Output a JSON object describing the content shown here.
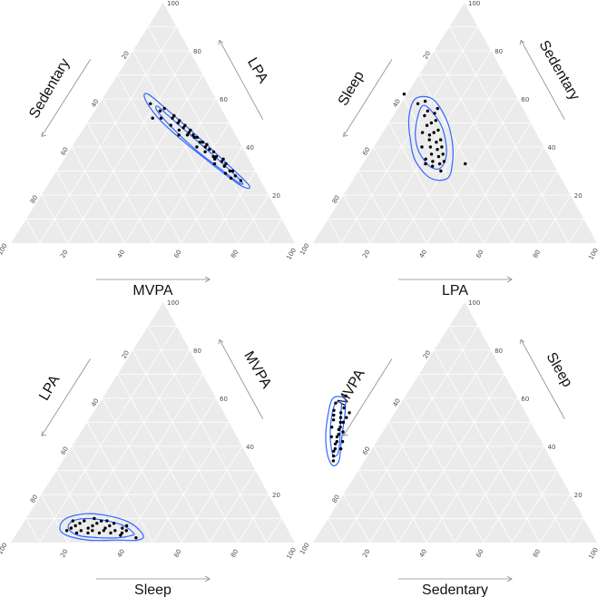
{
  "chart_data": [
    {
      "type": "scatter",
      "subtype": "ternary",
      "axes": {
        "left": "Sedentary",
        "right": "LPA",
        "bottom": "MVPA"
      },
      "ticks": [
        "20",
        "40",
        "60",
        "80",
        "100"
      ],
      "points": [
        [
          7,
          26,
          67
        ],
        [
          8,
          28,
          64
        ],
        [
          9,
          30,
          61
        ],
        [
          8,
          30,
          62
        ],
        [
          10,
          32,
          58
        ],
        [
          10,
          34,
          56
        ],
        [
          9,
          35,
          56
        ],
        [
          11,
          36,
          53
        ],
        [
          12,
          36,
          52
        ],
        [
          11,
          38,
          51
        ],
        [
          12,
          39,
          49
        ],
        [
          13,
          40,
          47
        ],
        [
          12,
          41,
          47
        ],
        [
          14,
          42,
          44
        ],
        [
          13,
          42,
          45
        ],
        [
          15,
          44,
          41
        ],
        [
          14,
          44,
          42
        ],
        [
          15,
          45,
          40
        ],
        [
          16,
          46,
          38
        ],
        [
          15,
          47,
          38
        ],
        [
          17,
          48,
          35
        ],
        [
          16,
          49,
          35
        ],
        [
          18,
          50,
          32
        ],
        [
          17,
          51,
          32
        ],
        [
          19,
          52,
          29
        ],
        [
          18,
          53,
          29
        ],
        [
          20,
          56,
          24
        ],
        [
          22,
          55,
          23
        ],
        [
          23,
          52,
          25
        ],
        [
          10,
          27,
          63
        ],
        [
          11,
          29,
          60
        ],
        [
          13,
          33,
          54
        ],
        [
          16,
          40,
          44
        ],
        [
          14,
          38,
          48
        ],
        [
          17,
          45,
          38
        ],
        [
          19,
          47,
          34
        ],
        [
          21,
          49,
          30
        ],
        [
          20,
          45,
          35
        ],
        [
          12,
          35,
          53
        ],
        [
          9,
          33,
          58
        ],
        [
          24,
          58,
          18
        ],
        [
          26,
          52,
          22
        ]
      ],
      "contours": [
        [
          [
            5,
            24,
            71
          ],
          [
            9,
            34,
            57
          ],
          [
            14,
            45,
            41
          ],
          [
            19,
            55,
            26
          ],
          [
            23,
            62,
            15
          ],
          [
            25,
            60,
            15
          ],
          [
            24,
            52,
            24
          ],
          [
            20,
            43,
            37
          ],
          [
            14,
            33,
            53
          ],
          [
            8,
            24,
            68
          ]
        ],
        [
          [
            7,
            26,
            67
          ],
          [
            11,
            35,
            54
          ],
          [
            16,
            45,
            39
          ],
          [
            20,
            53,
            27
          ],
          [
            22,
            57,
            21
          ],
          [
            23,
            55,
            22
          ],
          [
            21,
            48,
            31
          ],
          [
            17,
            39,
            44
          ],
          [
            12,
            31,
            57
          ],
          [
            8,
            25,
            67
          ]
        ]
      ]
    },
    {
      "type": "scatter",
      "subtype": "ternary",
      "axes": {
        "left": "Sleep",
        "right": "Sedentary",
        "bottom": "LPA"
      },
      "ticks": [
        "20",
        "40",
        "60",
        "80",
        "100"
      ],
      "points": [
        [
          30,
          56,
          14
        ],
        [
          32,
          54,
          14
        ],
        [
          34,
          55,
          11
        ],
        [
          36,
          53,
          11
        ],
        [
          33,
          51,
          16
        ],
        [
          35,
          50,
          15
        ],
        [
          37,
          49,
          14
        ],
        [
          34,
          47,
          19
        ],
        [
          36,
          46,
          18
        ],
        [
          38,
          45,
          17
        ],
        [
          35,
          43,
          22
        ],
        [
          37,
          42,
          21
        ],
        [
          39,
          43,
          18
        ],
        [
          36,
          40,
          24
        ],
        [
          38,
          39,
          23
        ],
        [
          40,
          40,
          20
        ],
        [
          37,
          37,
          26
        ],
        [
          39,
          36,
          25
        ],
        [
          41,
          37,
          22
        ],
        [
          38,
          34,
          28
        ],
        [
          40,
          33,
          27
        ],
        [
          42,
          34,
          24
        ],
        [
          44,
          35,
          21
        ],
        [
          43,
          32,
          25
        ],
        [
          41,
          30,
          29
        ],
        [
          45,
          33,
          22
        ],
        [
          33,
          59,
          8
        ],
        [
          39,
          62,
          -1
        ],
        [
          36,
          58,
          6
        ],
        [
          31,
          33,
          36
        ],
        [
          43,
          40,
          17
        ],
        [
          40,
          46,
          14
        ]
      ],
      "contours": [
        [
          [
            30,
            60,
            10
          ],
          [
            29,
            52,
            19
          ],
          [
            31,
            43,
            26
          ],
          [
            35,
            34,
            31
          ],
          [
            40,
            27,
            33
          ],
          [
            46,
            27,
            27
          ],
          [
            48,
            34,
            18
          ],
          [
            46,
            42,
            12
          ],
          [
            42,
            52,
            6
          ],
          [
            36,
            60,
            4
          ]
        ],
        [
          [
            33,
            56,
            11
          ],
          [
            32,
            49,
            19
          ],
          [
            34,
            41,
            25
          ],
          [
            37,
            35,
            28
          ],
          [
            41,
            31,
            28
          ],
          [
            44,
            32,
            24
          ],
          [
            45,
            38,
            17
          ],
          [
            43,
            45,
            12
          ],
          [
            39,
            52,
            9
          ],
          [
            35,
            57,
            8
          ]
        ]
      ]
    },
    {
      "type": "scatter",
      "subtype": "ternary",
      "axes": {
        "left": "LPA",
        "right": "MVPA",
        "bottom": "Sleep"
      },
      "ticks": [
        "20",
        "40",
        "60",
        "80",
        "100"
      ],
      "points": [
        [
          56,
          7,
          37
        ],
        [
          58,
          6,
          36
        ],
        [
          60,
          8,
          32
        ],
        [
          62,
          7,
          31
        ],
        [
          64,
          6,
          30
        ],
        [
          66,
          8,
          26
        ],
        [
          68,
          7,
          25
        ],
        [
          70,
          6,
          24
        ],
        [
          72,
          8,
          20
        ],
        [
          74,
          7,
          19
        ],
        [
          76,
          6,
          18
        ],
        [
          59,
          4,
          37
        ],
        [
          61,
          5,
          34
        ],
        [
          63,
          4,
          33
        ],
        [
          65,
          5,
          30
        ],
        [
          67,
          4,
          29
        ],
        [
          69,
          5,
          26
        ],
        [
          71,
          4,
          25
        ],
        [
          73,
          5,
          22
        ],
        [
          75,
          4,
          21
        ],
        [
          57,
          5,
          38
        ],
        [
          62,
          9,
          29
        ],
        [
          66,
          10,
          24
        ],
        [
          70,
          9,
          21
        ],
        [
          74,
          9,
          17
        ],
        [
          60,
          3,
          37
        ],
        [
          55,
          2,
          43
        ],
        [
          78,
          5,
          17
        ],
        [
          64,
          9,
          27
        ]
      ],
      "contours": [
        [
          [
            52,
            3,
            45
          ],
          [
            54,
            8,
            38
          ],
          [
            60,
            11,
            29
          ],
          [
            68,
            12,
            20
          ],
          [
            76,
            10,
            14
          ],
          [
            80,
            6,
            14
          ],
          [
            79,
            3,
            18
          ],
          [
            72,
            1,
            27
          ],
          [
            62,
            1,
            37
          ],
          [
            55,
            1,
            44
          ]
        ],
        [
          [
            55,
            4,
            41
          ],
          [
            57,
            7,
            36
          ],
          [
            62,
            9,
            29
          ],
          [
            68,
            10,
            22
          ],
          [
            74,
            9,
            17
          ],
          [
            77,
            6,
            17
          ],
          [
            75,
            3,
            22
          ],
          [
            68,
            2,
            30
          ],
          [
            61,
            2,
            37
          ],
          [
            56,
            3,
            41
          ]
        ]
      ]
    },
    {
      "type": "scatter",
      "subtype": "ternary",
      "axes": {
        "left": "MVPA",
        "right": "Sleep",
        "bottom": "Sedentary"
      },
      "ticks": [
        "20",
        "40",
        "60",
        "80",
        "100"
      ],
      "points": [
        [
          63,
          56,
          -19
        ],
        [
          65,
          54,
          -19
        ],
        [
          66,
          52,
          -18
        ],
        [
          67,
          50,
          -17
        ],
        [
          68,
          48,
          -16
        ],
        [
          69,
          47,
          -16
        ],
        [
          70,
          45,
          -15
        ],
        [
          71,
          44,
          -15
        ],
        [
          72,
          42,
          -14
        ],
        [
          73,
          41,
          -14
        ],
        [
          74,
          39,
          -13
        ],
        [
          75,
          38,
          -13
        ],
        [
          64,
          52,
          -16
        ],
        [
          66,
          50,
          -16
        ],
        [
          68,
          46,
          -14
        ],
        [
          70,
          42,
          -12
        ],
        [
          72,
          39,
          -11
        ],
        [
          65,
          58,
          -23
        ],
        [
          67,
          55,
          -22
        ],
        [
          69,
          51,
          -20
        ],
        [
          71,
          48,
          -19
        ],
        [
          73,
          44,
          -17
        ],
        [
          76,
          36,
          -12
        ],
        [
          62,
          54,
          -16
        ],
        [
          60,
          61,
          -21
        ],
        [
          77,
          34,
          -11
        ],
        [
          68,
          53,
          -21
        ]
      ],
      "contours": [
        [
          [
            61,
            60,
            -21
          ],
          [
            63,
            55,
            -18
          ],
          [
            67,
            48,
            -15
          ],
          [
            71,
            41,
            -12
          ],
          [
            75,
            34,
            -9
          ],
          [
            78,
            32,
            -10
          ],
          [
            78,
            36,
            -14
          ],
          [
            75,
            44,
            -19
          ],
          [
            70,
            53,
            -23
          ],
          [
            65,
            60,
            -25
          ]
        ],
        [
          [
            63,
            58,
            -21
          ],
          [
            65,
            54,
            -19
          ],
          [
            68,
            48,
            -16
          ],
          [
            71,
            42,
            -13
          ],
          [
            74,
            37,
            -11
          ],
          [
            76,
            36,
            -12
          ],
          [
            75,
            40,
            -15
          ],
          [
            72,
            47,
            -19
          ],
          [
            68,
            54,
            -22
          ],
          [
            65,
            58,
            -23
          ]
        ]
      ]
    }
  ]
}
